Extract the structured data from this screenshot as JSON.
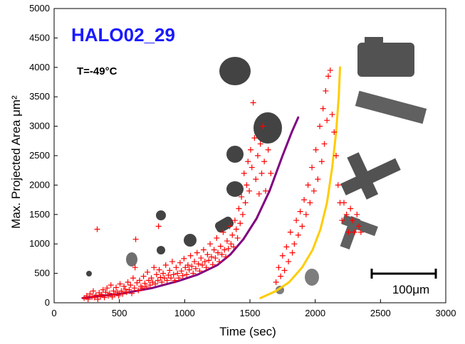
{
  "chart_data": {
    "type": "scatter",
    "title": "HALO02_29",
    "title_color": "#1a1aff",
    "annotation": "T=-49°C",
    "xlabel": "Time (sec)",
    "ylabel": "Max. Projected Area μm²",
    "xlim": [
      0,
      3000
    ],
    "ylim": [
      0,
      5000
    ],
    "xticks": [
      0,
      500,
      1000,
      1500,
      2000,
      2500,
      3000
    ],
    "yticks": [
      0,
      500,
      1000,
      1500,
      2000,
      2500,
      3000,
      3500,
      4000,
      4500,
      5000
    ],
    "grid": false,
    "scale_bar_label": "100μm",
    "series": [
      {
        "marker": "plus",
        "color": "#ff0000",
        "points": [
          [
            230,
            80
          ],
          [
            250,
            120
          ],
          [
            260,
            60
          ],
          [
            275,
            150
          ],
          [
            290,
            100
          ],
          [
            300,
            200
          ],
          [
            310,
            90
          ],
          [
            320,
            130
          ],
          [
            330,
            1250
          ],
          [
            335,
            60
          ],
          [
            345,
            170
          ],
          [
            355,
            110
          ],
          [
            365,
            140
          ],
          [
            375,
            220
          ],
          [
            385,
            90
          ],
          [
            395,
            180
          ],
          [
            405,
            250
          ],
          [
            415,
            120
          ],
          [
            425,
            160
          ],
          [
            435,
            300
          ],
          [
            445,
            100
          ],
          [
            455,
            200
          ],
          [
            465,
            140
          ],
          [
            475,
            260
          ],
          [
            485,
            180
          ],
          [
            495,
            120
          ],
          [
            505,
            320
          ],
          [
            515,
            200
          ],
          [
            525,
            150
          ],
          [
            535,
            280
          ],
          [
            545,
            230
          ],
          [
            555,
            180
          ],
          [
            565,
            350
          ],
          [
            575,
            220
          ],
          [
            585,
            300
          ],
          [
            595,
            160
          ],
          [
            605,
            420
          ],
          [
            615,
            250
          ],
          [
            620,
            600
          ],
          [
            625,
            1080
          ],
          [
            635,
            340
          ],
          [
            645,
            210
          ],
          [
            655,
            380
          ],
          [
            665,
            280
          ],
          [
            675,
            250
          ],
          [
            685,
            450
          ],
          [
            695,
            330
          ],
          [
            705,
            270
          ],
          [
            715,
            520
          ],
          [
            725,
            380
          ],
          [
            735,
            300
          ],
          [
            745,
            420
          ],
          [
            755,
            350
          ],
          [
            765,
            600
          ],
          [
            775,
            320
          ],
          [
            785,
            480
          ],
          [
            795,
            380
          ],
          [
            800,
            1300
          ],
          [
            805,
            560
          ],
          [
            815,
            430
          ],
          [
            825,
            350
          ],
          [
            835,
            500
          ],
          [
            845,
            420
          ],
          [
            855,
            640
          ],
          [
            865,
            380
          ],
          [
            875,
            470
          ],
          [
            885,
            550
          ],
          [
            895,
            420
          ],
          [
            905,
            700
          ],
          [
            915,
            480
          ],
          [
            925,
            380
          ],
          [
            935,
            600
          ],
          [
            945,
            500
          ],
          [
            955,
            420
          ],
          [
            965,
            680
          ],
          [
            975,
            540
          ],
          [
            985,
            460
          ],
          [
            995,
            750
          ],
          [
            1005,
            600
          ],
          [
            1015,
            480
          ],
          [
            1025,
            640
          ],
          [
            1035,
            560
          ],
          [
            1045,
            800
          ],
          [
            1055,
            620
          ],
          [
            1065,
            500
          ],
          [
            1075,
            700
          ],
          [
            1085,
            580
          ],
          [
            1095,
            850
          ],
          [
            1105,
            660
          ],
          [
            1115,
            540
          ],
          [
            1125,
            760
          ],
          [
            1135,
            640
          ],
          [
            1145,
            900
          ],
          [
            1155,
            700
          ],
          [
            1165,
            600
          ],
          [
            1175,
            820
          ],
          [
            1185,
            720
          ],
          [
            1195,
            1000
          ],
          [
            1205,
            780
          ],
          [
            1215,
            650
          ],
          [
            1225,
            900
          ],
          [
            1235,
            760
          ],
          [
            1245,
            1100
          ],
          [
            1255,
            850
          ],
          [
            1265,
            700
          ],
          [
            1275,
            960
          ],
          [
            1285,
            820
          ],
          [
            1295,
            1200
          ],
          [
            1305,
            900
          ],
          [
            1315,
            780
          ],
          [
            1325,
            1050
          ],
          [
            1335,
            920
          ],
          [
            1345,
            1300
          ],
          [
            1355,
            1000
          ],
          [
            1365,
            1150
          ],
          [
            1375,
            950
          ],
          [
            1385,
            1400
          ],
          [
            1395,
            1250
          ],
          [
            1405,
            1100
          ],
          [
            1415,
            1600
          ],
          [
            1425,
            1350
          ],
          [
            1435,
            1800
          ],
          [
            1445,
            1500
          ],
          [
            1455,
            2200
          ],
          [
            1465,
            1700
          ],
          [
            1475,
            2000
          ],
          [
            1485,
            2400
          ],
          [
            1495,
            1900
          ],
          [
            1505,
            2600
          ],
          [
            1515,
            2300
          ],
          [
            1525,
            3400
          ],
          [
            1535,
            2800
          ],
          [
            1545,
            2100
          ],
          [
            1560,
            2500
          ],
          [
            1570,
            1850
          ],
          [
            1580,
            2700
          ],
          [
            1590,
            2200
          ],
          [
            1600,
            3000
          ],
          [
            1610,
            2400
          ],
          [
            1620,
            1900
          ],
          [
            1640,
            2600
          ],
          [
            1660,
            2200
          ],
          [
            1700,
            350
          ],
          [
            1720,
            600
          ],
          [
            1735,
            450
          ],
          [
            1750,
            800
          ],
          [
            1765,
            550
          ],
          [
            1780,
            950
          ],
          [
            1795,
            700
          ],
          [
            1810,
            1200
          ],
          [
            1825,
            850
          ],
          [
            1840,
            1000
          ],
          [
            1855,
            1400
          ],
          [
            1870,
            1150
          ],
          [
            1885,
            1550
          ],
          [
            1900,
            1300
          ],
          [
            1915,
            1750
          ],
          [
            1930,
            1500
          ],
          [
            1945,
            2000
          ],
          [
            1960,
            1700
          ],
          [
            1975,
            2300
          ],
          [
            1990,
            1900
          ],
          [
            2005,
            2600
          ],
          [
            2020,
            2100
          ],
          [
            2035,
            3000
          ],
          [
            2050,
            2400
          ],
          [
            2060,
            3300
          ],
          [
            2070,
            2700
          ],
          [
            2080,
            3600
          ],
          [
            2090,
            3100
          ],
          [
            2100,
            3850
          ],
          [
            2115,
            3950
          ],
          [
            2130,
            3200
          ],
          [
            2145,
            2900
          ],
          [
            2160,
            2500
          ],
          [
            2175,
            2000
          ],
          [
            2190,
            1700
          ],
          [
            2205,
            1400
          ],
          [
            2220,
            1700
          ],
          [
            2240,
            1500
          ],
          [
            2255,
            1200
          ],
          [
            2270,
            1600
          ],
          [
            2285,
            1400
          ],
          [
            2300,
            1200
          ],
          [
            2320,
            1500
          ],
          [
            2335,
            1300
          ],
          [
            2350,
            1200
          ]
        ]
      }
    ],
    "fit_curves": [
      {
        "color": "#800080",
        "points": [
          [
            220,
            80
          ],
          [
            500,
            150
          ],
          [
            750,
            250
          ],
          [
            950,
            370
          ],
          [
            1100,
            480
          ],
          [
            1250,
            640
          ],
          [
            1350,
            820
          ],
          [
            1450,
            1080
          ],
          [
            1550,
            1430
          ],
          [
            1650,
            1900
          ],
          [
            1750,
            2500
          ],
          [
            1820,
            2900
          ],
          [
            1870,
            3150
          ]
        ]
      },
      {
        "color": "#ffcc00",
        "points": [
          [
            1580,
            80
          ],
          [
            1700,
            200
          ],
          [
            1800,
            350
          ],
          [
            1900,
            600
          ],
          [
            1980,
            900
          ],
          [
            2040,
            1250
          ],
          [
            2090,
            1700
          ],
          [
            2130,
            2300
          ],
          [
            2160,
            2900
          ],
          [
            2180,
            3500
          ],
          [
            2190,
            4000
          ]
        ]
      }
    ]
  }
}
